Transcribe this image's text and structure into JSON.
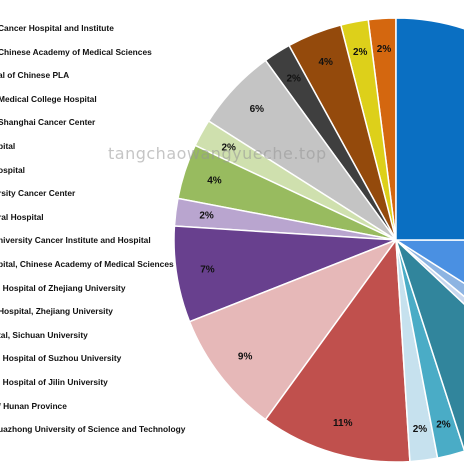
{
  "watermark": "tangchaowangyueche.top",
  "chart_data": {
    "type": "pie",
    "categories": [
      "Cancer Hospital and Institute",
      "Chinese Academy of Medical Sciences",
      "al of Chinese PLA",
      "Medical College Hospital",
      "Shanghai Cancer Center",
      "pital",
      "ospital",
      "rsity Cancer Center",
      "ral Hospital",
      "niversity Cancer Institute and Hospital",
      "pital, Chinese Academy of Medical Sciences",
      "l Hospital of Zhejiang University",
      "Hospital, Zhejiang University",
      "tal, Sichuan University",
      "l Hospital of Suzhou University",
      "l Hospital of Jilin University",
      "f Hunan Province",
      "uazhong University of Science and Technology"
    ],
    "slices": [
      {
        "value": 2,
        "label": "2%",
        "color": "#d4670f"
      },
      {
        "value": 2,
        "label": "2%",
        "color": "#ddd01a"
      },
      {
        "value": 4,
        "label": "4%",
        "color": "#944a0c"
      },
      {
        "value": 2,
        "label": "2%",
        "color": "#3f3f3f"
      },
      {
        "value": 6,
        "label": "6%",
        "color": "#c4c4c4"
      },
      {
        "value": 2,
        "label": "2%",
        "color": "#cfe0ae"
      },
      {
        "value": 4,
        "label": "4%",
        "color": "#98bb5f"
      },
      {
        "value": 2,
        "label": "2%",
        "color": "#b9a5cf"
      },
      {
        "value": 7,
        "label": "7%",
        "color": "#68408e"
      },
      {
        "value": 9,
        "label": "9%",
        "color": "#e6b8b8"
      },
      {
        "value": 11,
        "label": "11%",
        "color": "#c0504d"
      },
      {
        "value": 2,
        "label": "2%",
        "color": "#c6e1ee"
      },
      {
        "value": 2,
        "label": "2%",
        "color": "#4aacc6"
      },
      {
        "value": 8,
        "label": "",
        "color": "#31859c"
      },
      {
        "value": 1,
        "label": "",
        "color": "#c7d7ef"
      },
      {
        "value": 2,
        "label": "",
        "color": "#8db4e2"
      },
      {
        "value": 9,
        "label": "",
        "color": "#4a90e2"
      },
      {
        "value": 25,
        "label": "",
        "color": "#0a6fc2"
      }
    ]
  }
}
